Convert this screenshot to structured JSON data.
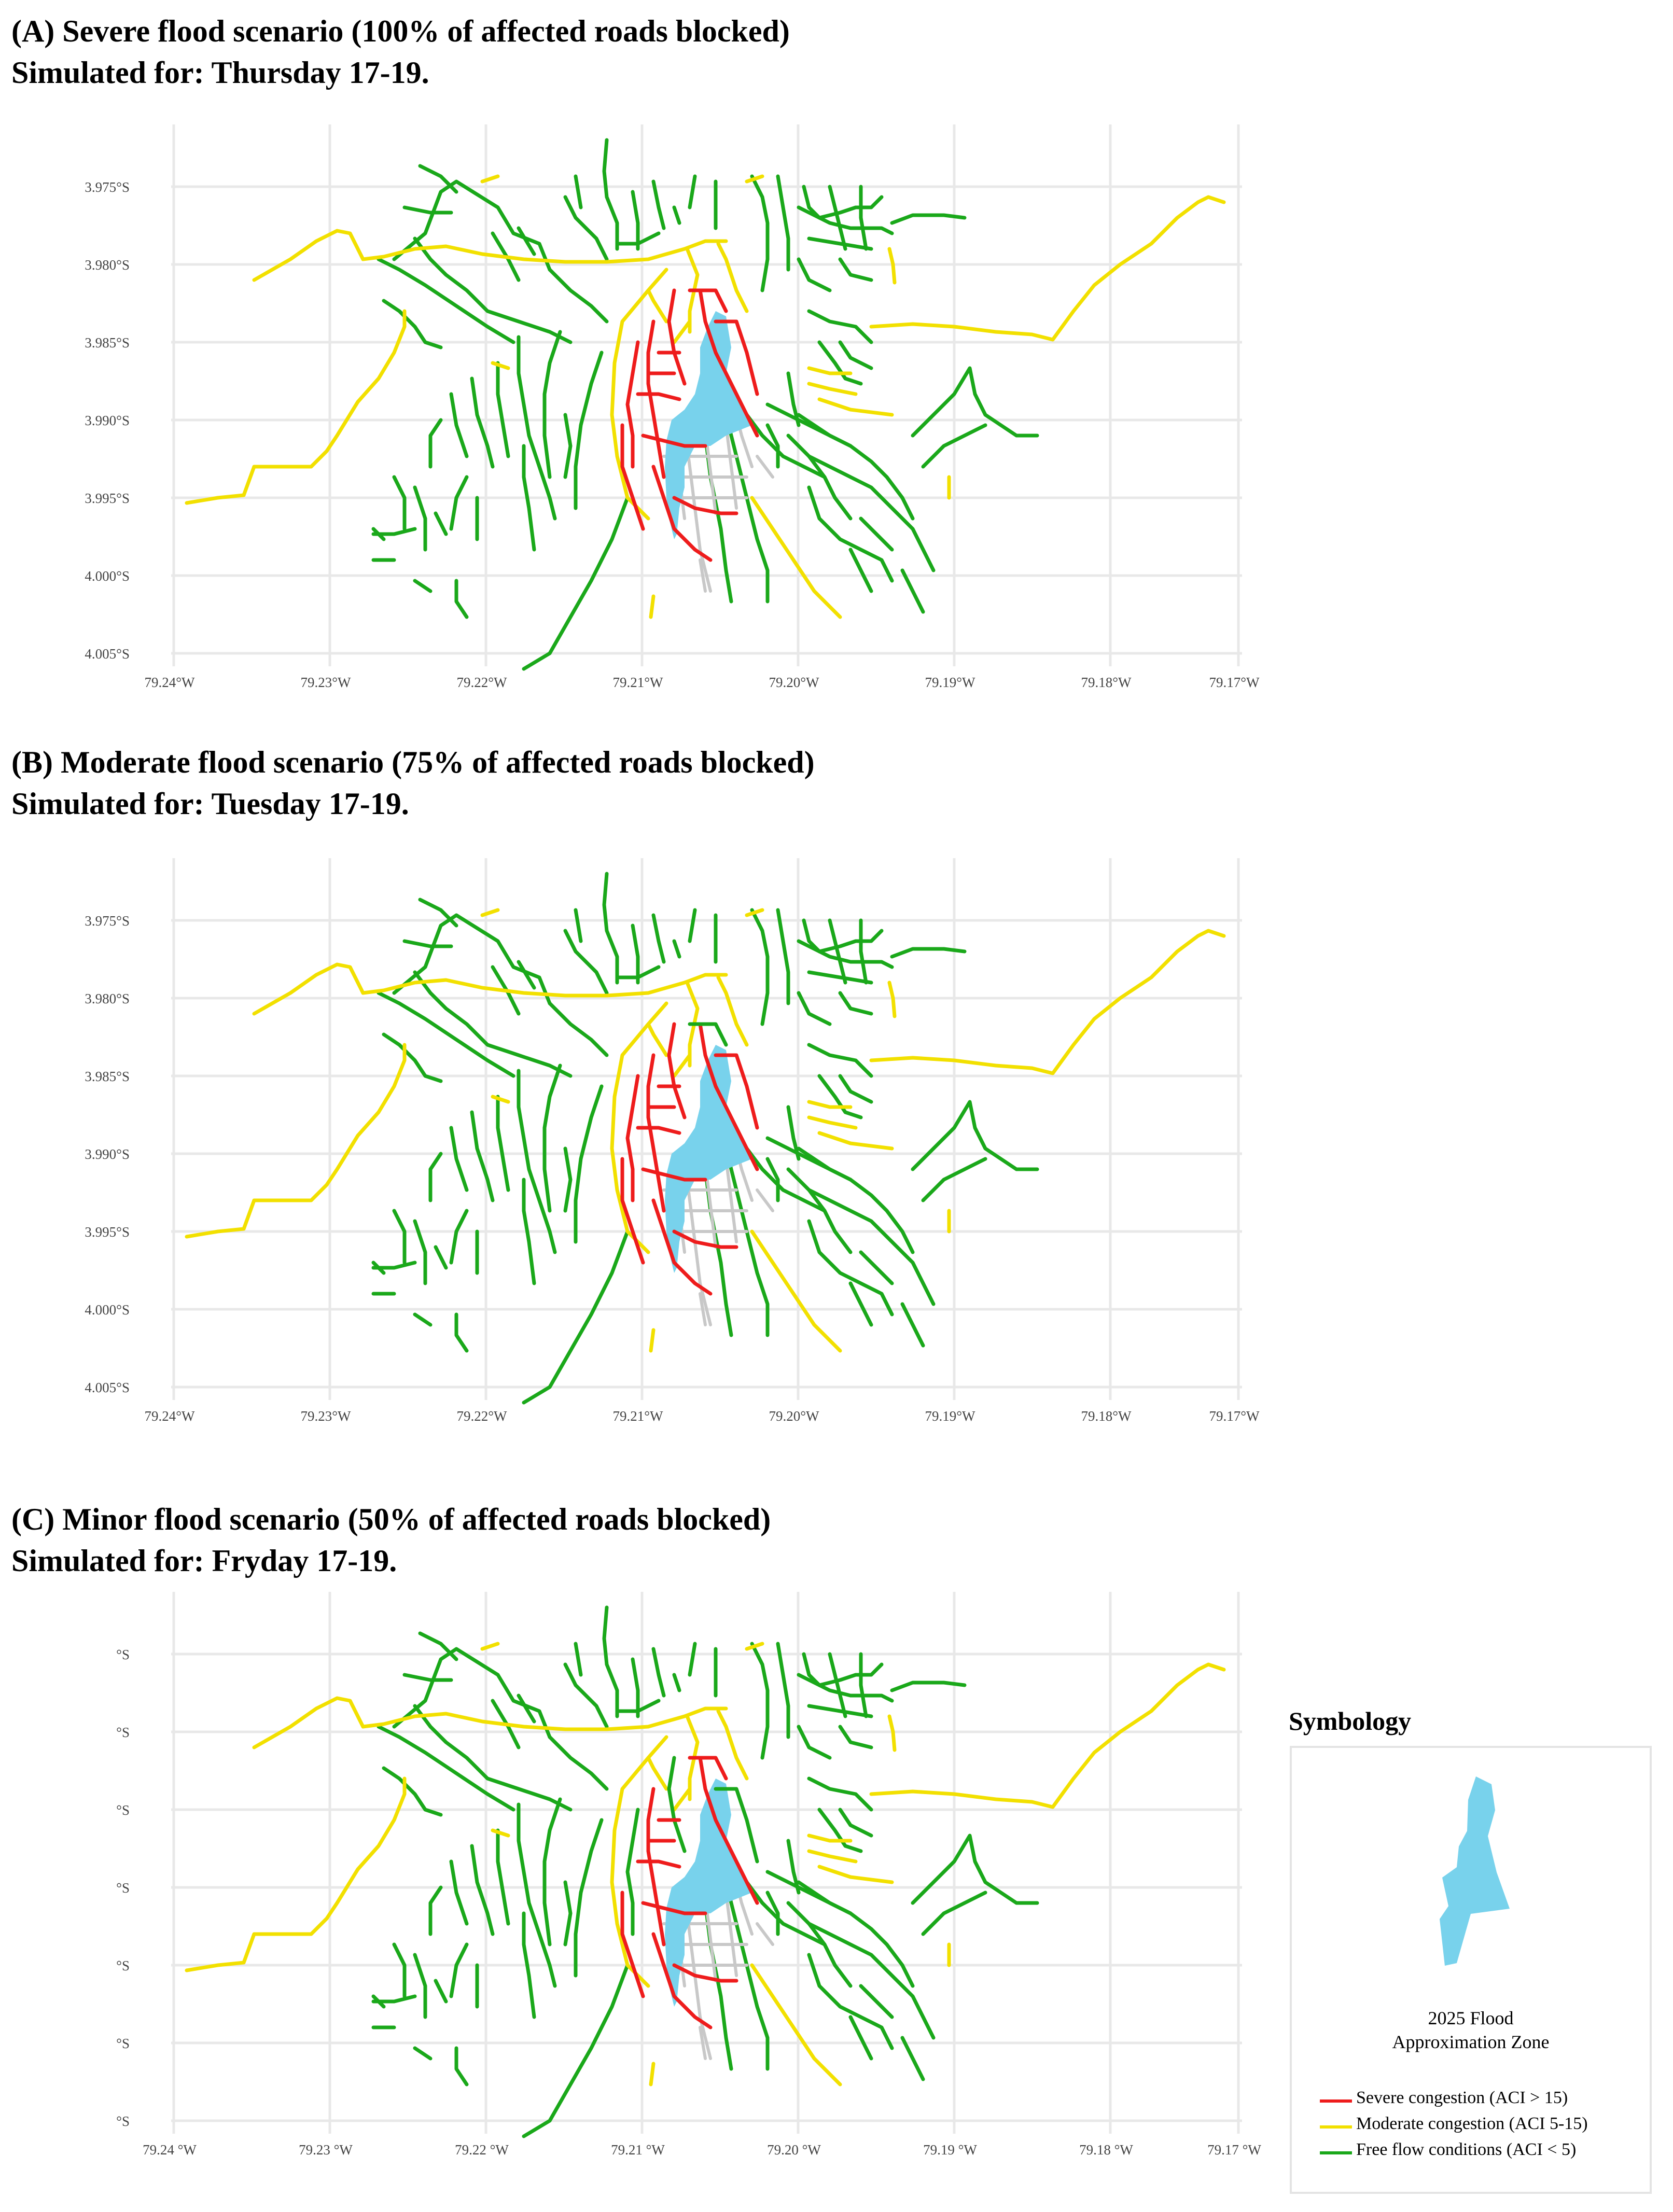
{
  "panels": [
    {
      "id": "A",
      "title_line1": "(A) Severe flood scenario (100% of affected roads blocked)",
      "title_line2": "Simulated for: Thursday 17-19.",
      "y_ticks": [
        "3.975°S",
        "3.980°S",
        "3.985°S",
        "3.990°S",
        "3.995°S",
        "4.000°S",
        "4.005°S"
      ],
      "x_ticks": [
        "79.24°W",
        "79.23°W",
        "79.22°W",
        "79.21°W",
        "79.20°W",
        "79.19°W",
        "79.18°W",
        "79.17°W"
      ],
      "congestion_level": "severe"
    },
    {
      "id": "B",
      "title_line1": "(B) Moderate flood scenario (75% of affected roads blocked)",
      "title_line2": "Simulated for: Tuesday 17-19.",
      "y_ticks": [
        "3.975°S",
        "3.980°S",
        "3.985°S",
        "3.990°S",
        "3.995°S",
        "4.000°S",
        "4.005°S"
      ],
      "x_ticks": [
        "79.24°W",
        "79.23°W",
        "79.22°W",
        "79.21°W",
        "79.20°W",
        "79.19°W",
        "79.18°W",
        "79.17°W"
      ],
      "congestion_level": "moderate"
    },
    {
      "id": "C",
      "title_line1": "(C) Minor flood scenario (50% of affected roads blocked)",
      "title_line2": "Simulated for: Fryday 17-19.",
      "y_ticks": [
        "°S",
        "°S",
        "°S",
        "°S",
        "°S",
        "°S",
        "°S"
      ],
      "x_ticks": [
        "79.24 °W",
        "79.23 °W",
        "79.22 °W",
        "79.21 °W",
        "79.20 °W",
        "79.19 °W",
        "79.18 °W",
        "79.17 °W"
      ],
      "congestion_level": "minor"
    }
  ],
  "legend": {
    "title": "Symbology",
    "zone_label_line1": "2025 Flood",
    "zone_label_line2": "Approximation Zone",
    "items": [
      {
        "label": "Severe congestion (ACI > 15)",
        "color": "#ee1c1c"
      },
      {
        "label": "Moderate congestion (ACI 5-15)",
        "color": "#f2e000"
      },
      {
        "label": "Free flow conditions (ACI < 5)",
        "color": "#1aa81a"
      }
    ]
  },
  "colors": {
    "severe": "#ee1c1c",
    "moderate": "#f2e000",
    "free": "#1aa81a",
    "flood_zone": "#78d2ec",
    "inundated_road": "#c8c8c8",
    "grid": "#e8e8e8"
  }
}
